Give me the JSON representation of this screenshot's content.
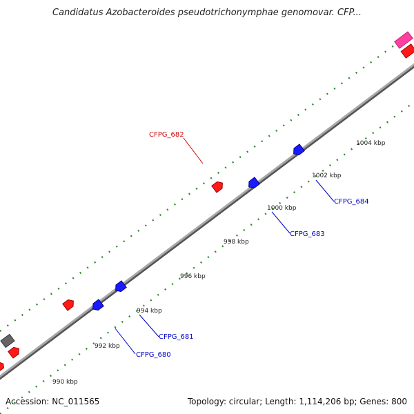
{
  "title": "Candidatus Azobacteroides pseudotrichonymphae genomovar. CFP...",
  "footer": {
    "accession": "Accession: NC_011565",
    "summary": "Topology: circular; Length: 1,114,206 bp; Genes: 800"
  },
  "colors": {
    "forward_gene": "#ff1a1a",
    "reverse_gene": "#1a1aff",
    "other_gene": "#666666",
    "rna_gene": "#ff40a0",
    "tick": "#2e8b2e",
    "backbone": "#808080",
    "label_forward": "#cc0000",
    "label_reverse": "#0000cc"
  },
  "ruler_labels": [
    "990 kbp",
    "992 kbp",
    "994 kbp",
    "996 kbp",
    "998 kbp",
    "1000 kbp",
    "1002 kbp",
    "1004 kbp"
  ],
  "gene_labels": [
    {
      "name": "CFPG_682",
      "strand": "forward"
    },
    {
      "name": "CFPG_684",
      "strand": "reverse"
    },
    {
      "name": "CFPG_683",
      "strand": "reverse"
    },
    {
      "name": "CFPG_681",
      "strand": "reverse"
    },
    {
      "name": "CFPG_680",
      "strand": "reverse"
    }
  ]
}
